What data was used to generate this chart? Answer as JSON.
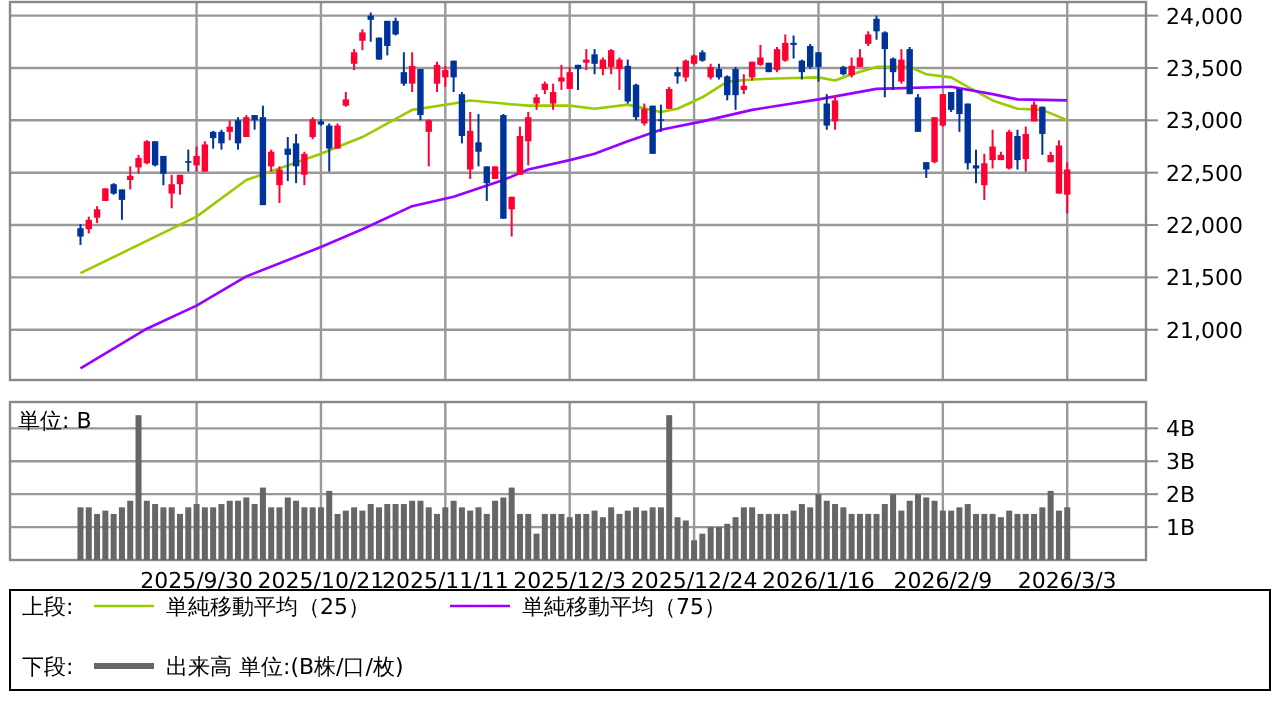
{
  "chart_data": [
    {
      "type": "candlestick",
      "categories": [
        null,
        null,
        null,
        null,
        null,
        null,
        null,
        null,
        null,
        null,
        null,
        null,
        null,
        null,
        "2025/9/30",
        null,
        null,
        null,
        null,
        null,
        null,
        null,
        null,
        null,
        null,
        null,
        null,
        null,
        null,
        "2025/10/21",
        null,
        null,
        null,
        null,
        null,
        null,
        null,
        null,
        null,
        null,
        null,
        null,
        null,
        null,
        "2025/11/11",
        null,
        null,
        null,
        null,
        null,
        null,
        null,
        null,
        null,
        null,
        null,
        null,
        null,
        null,
        "2025/12/3",
        null,
        null,
        null,
        null,
        null,
        null,
        null,
        null,
        null,
        null,
        null,
        null,
        null,
        null,
        "2025/12/24",
        null,
        null,
        null,
        null,
        null,
        null,
        null,
        null,
        null,
        null,
        null,
        null,
        null,
        null,
        "2026/1/16",
        null,
        null,
        null,
        null,
        null,
        null,
        null,
        null,
        null,
        null,
        null,
        null,
        null,
        null,
        "2026/2/9",
        null,
        null,
        null,
        null,
        null,
        null,
        null,
        null,
        null,
        null,
        null,
        null,
        null,
        null,
        "2026/3/3"
      ],
      "ohlc": [
        [
          21970,
          22010,
          21810,
          21890
        ],
        [
          21960,
          22080,
          21920,
          22050
        ],
        [
          22070,
          22180,
          22020,
          22150
        ],
        [
          22230,
          22350,
          22230,
          22350
        ],
        [
          22390,
          22400,
          22290,
          22300
        ],
        [
          22340,
          22340,
          22050,
          22240
        ],
        [
          22430,
          22560,
          22340,
          22470
        ],
        [
          22550,
          22670,
          22490,
          22640
        ],
        [
          22590,
          22810,
          22580,
          22800
        ],
        [
          22800,
          22800,
          22560,
          22570
        ],
        [
          22660,
          22660,
          22380,
          22490
        ],
        [
          22300,
          22480,
          22160,
          22390
        ],
        [
          22390,
          22480,
          22290,
          22480
        ],
        [
          22610,
          22720,
          22510,
          22600
        ],
        [
          22570,
          22750,
          22510,
          22660
        ],
        [
          22510,
          22800,
          22510,
          22770
        ],
        [
          22890,
          22900,
          22730,
          22830
        ],
        [
          22890,
          22910,
          22720,
          22780
        ],
        [
          22890,
          23000,
          22810,
          22940
        ],
        [
          23000,
          23030,
          22720,
          22780
        ],
        [
          22840,
          23050,
          22840,
          23030
        ],
        [
          23050,
          23050,
          22910,
          23000
        ],
        [
          23030,
          23140,
          22190,
          22190
        ],
        [
          22560,
          22720,
          22510,
          22700
        ],
        [
          22380,
          22560,
          22210,
          22530
        ],
        [
          22730,
          22840,
          22420,
          22670
        ],
        [
          22780,
          22870,
          22400,
          22560
        ],
        [
          22480,
          22700,
          22380,
          22680
        ],
        [
          22840,
          23030,
          22820,
          23010
        ],
        [
          22990,
          23010,
          22950,
          22960
        ],
        [
          22950,
          22970,
          22510,
          22730
        ],
        [
          22730,
          22970,
          22730,
          22950
        ],
        [
          23140,
          23270,
          23130,
          23200
        ],
        [
          23540,
          23680,
          23480,
          23650
        ],
        [
          23760,
          23870,
          23670,
          23840
        ],
        [
          24000,
          24030,
          23750,
          23960
        ],
        [
          23790,
          23790,
          23580,
          23580
        ],
        [
          23950,
          23950,
          23620,
          23710
        ],
        [
          23950,
          23980,
          23810,
          23820
        ],
        [
          23460,
          23650,
          23330,
          23350
        ],
        [
          23350,
          23650,
          23270,
          23520
        ],
        [
          23490,
          23490,
          23000,
          23050
        ],
        [
          22890,
          23010,
          22560,
          23000
        ],
        [
          23350,
          23560,
          23270,
          23530
        ],
        [
          23410,
          23520,
          23320,
          23480
        ],
        [
          23570,
          23570,
          23270,
          23410
        ],
        [
          23250,
          23270,
          22780,
          22850
        ],
        [
          22530,
          23080,
          22440,
          22900
        ],
        [
          22790,
          23060,
          22560,
          22700
        ],
        [
          22560,
          22560,
          22230,
          22400
        ],
        [
          22440,
          22560,
          22440,
          22560
        ],
        [
          23050,
          23060,
          22060,
          22060
        ],
        [
          22150,
          22270,
          21890,
          22270
        ],
        [
          22480,
          22940,
          22480,
          22850
        ],
        [
          22800,
          23080,
          22570,
          23030
        ],
        [
          23160,
          23250,
          23100,
          23220
        ],
        [
          23290,
          23370,
          23250,
          23350
        ],
        [
          23160,
          23350,
          23100,
          23270
        ],
        [
          23370,
          23530,
          23290,
          23410
        ],
        [
          23300,
          23510,
          23300,
          23460
        ],
        [
          23530,
          23530,
          23290,
          23490
        ],
        [
          23550,
          23680,
          23480,
          23580
        ],
        [
          23630,
          23680,
          23440,
          23540
        ],
        [
          23490,
          23600,
          23430,
          23580
        ],
        [
          23510,
          23680,
          23440,
          23670
        ],
        [
          23490,
          23600,
          23290,
          23580
        ],
        [
          23520,
          23580,
          23160,
          23180
        ],
        [
          23340,
          23350,
          23000,
          23030
        ],
        [
          22970,
          23160,
          22950,
          23110
        ],
        [
          23140,
          23140,
          22680,
          22680
        ],
        [
          23010,
          23150,
          22890,
          23000
        ],
        [
          23110,
          23320,
          23110,
          23300
        ],
        [
          23460,
          23510,
          23350,
          23420
        ],
        [
          23410,
          23580,
          23370,
          23570
        ],
        [
          23540,
          23630,
          23530,
          23620
        ],
        [
          23650,
          23670,
          23560,
          23570
        ],
        [
          23410,
          23540,
          23390,
          23510
        ],
        [
          23490,
          23540,
          23390,
          23410
        ],
        [
          23420,
          23430,
          23190,
          23240
        ],
        [
          23490,
          23510,
          23100,
          23240
        ],
        [
          23290,
          23440,
          23250,
          23330
        ],
        [
          23410,
          23560,
          23380,
          23560
        ],
        [
          23530,
          23720,
          23520,
          23600
        ],
        [
          23550,
          23550,
          23460,
          23460
        ],
        [
          23480,
          23700,
          23460,
          23680
        ],
        [
          23570,
          23820,
          23560,
          23740
        ],
        [
          23740,
          23810,
          23590,
          23720
        ],
        [
          23570,
          23580,
          23390,
          23460
        ],
        [
          23710,
          23730,
          23490,
          23510
        ],
        [
          23650,
          23650,
          23370,
          23510
        ],
        [
          23160,
          23250,
          22910,
          22950
        ],
        [
          22990,
          23240,
          22910,
          23190
        ],
        [
          23510,
          23520,
          23430,
          23440
        ],
        [
          23430,
          23600,
          23410,
          23520
        ],
        [
          23510,
          23680,
          23510,
          23600
        ],
        [
          23730,
          23850,
          23710,
          23820
        ],
        [
          23970,
          24000,
          23770,
          23850
        ],
        [
          23840,
          23850,
          23220,
          23680
        ],
        [
          23590,
          23600,
          23290,
          23460
        ],
        [
          23370,
          23680,
          23350,
          23580
        ],
        [
          23680,
          23700,
          23250,
          23250
        ],
        [
          23220,
          23250,
          22890,
          22890
        ],
        [
          22600,
          22600,
          22450,
          22530
        ],
        [
          22600,
          23030,
          22590,
          23030
        ],
        [
          22950,
          23250,
          22940,
          23250
        ],
        [
          23270,
          23270,
          23080,
          23100
        ],
        [
          23300,
          23300,
          22890,
          23060
        ],
        [
          23160,
          23160,
          22530,
          22590
        ],
        [
          22570,
          22720,
          22400,
          22540
        ],
        [
          22380,
          22680,
          22240,
          22590
        ],
        [
          22620,
          22910,
          22540,
          22750
        ],
        [
          22620,
          22700,
          22620,
          22670
        ],
        [
          22540,
          22910,
          22530,
          22890
        ],
        [
          22850,
          22910,
          22530,
          22620
        ],
        [
          22630,
          22940,
          22510,
          22870
        ],
        [
          22990,
          23180,
          22990,
          23150
        ],
        [
          23130,
          23130,
          22670,
          22870
        ],
        [
          22600,
          22700,
          22600,
          22670
        ],
        [
          22300,
          22810,
          22300,
          22760
        ],
        [
          22290,
          22600,
          22110,
          22530
        ]
      ],
      "colors": [
        "#003399",
        "#ff0033",
        "#ff0033",
        "#ff0033",
        "#003399",
        "#003399",
        "#ff0033",
        "#ff0033",
        "#ff0033",
        "#003399",
        "#003399",
        "#ff0033",
        "#ff0033",
        "#003399",
        "#ff0033",
        "#ff0033",
        "#003399",
        "#003399",
        "#ff0033",
        "#003399",
        "#ff0033",
        "#003399",
        "#003399",
        "#ff0033",
        "#ff0033",
        "#003399",
        "#003399",
        "#ff0033",
        "#ff0033",
        "#003399",
        "#003399",
        "#ff0033",
        "#ff0033",
        "#ff0033",
        "#ff0033",
        "#003399",
        "#003399",
        "#003399",
        "#003399",
        "#003399",
        "#ff0033",
        "#003399",
        "#ff0033",
        "#ff0033",
        "#ff0033",
        "#003399",
        "#003399",
        "#ff0033",
        "#003399",
        "#003399",
        "#ff0033",
        "#003399",
        "#ff0033",
        "#ff0033",
        "#ff0033",
        "#ff0033",
        "#ff0033",
        "#ff0033",
        "#ff0033",
        "#ff0033",
        "#003399",
        "#ff0033",
        "#003399",
        "#ff0033",
        "#ff0033",
        "#ff0033",
        "#003399",
        "#003399",
        "#ff0033",
        "#003399",
        "#003399",
        "#ff0033",
        "#003399",
        "#ff0033",
        "#ff0033",
        "#003399",
        "#ff0033",
        "#003399",
        "#003399",
        "#003399",
        "#ff0033",
        "#ff0033",
        "#ff0033",
        "#003399",
        "#ff0033",
        "#ff0033",
        "#003399",
        "#003399",
        "#003399",
        "#003399",
        "#003399",
        "#ff0033",
        "#003399",
        "#ff0033",
        "#ff0033",
        "#ff0033",
        "#003399",
        "#003399",
        "#003399",
        "#ff0033",
        "#003399",
        "#003399",
        "#003399",
        "#ff0033",
        "#ff0033",
        "#003399",
        "#003399",
        "#003399",
        "#003399",
        "#ff0033",
        "#ff0033",
        "#ff0033",
        "#ff0033",
        "#003399",
        "#ff0033",
        "#ff0033",
        "#003399",
        "#ff0033",
        "#ff0033",
        "#ff0033"
      ],
      "series": [
        {
          "type": "line",
          "name": "単純移動平均（25）",
          "color": "#99cc00",
          "values": [
            21540,
            null,
            null,
            null,
            null,
            null,
            null,
            null,
            null,
            null,
            null,
            null,
            null,
            null,
            22080,
            null,
            null,
            null,
            null,
            null,
            22430,
            null,
            null,
            null,
            null,
            null,
            null,
            null,
            null,
            22680,
            null,
            null,
            null,
            null,
            22840,
            null,
            null,
            null,
            null,
            null,
            23100,
            null,
            null,
            null,
            null,
            23160,
            null,
            23190,
            null,
            null,
            null,
            23160,
            null,
            null,
            23140,
            null,
            null,
            null,
            null,
            23140,
            null,
            null,
            23110,
            null,
            null,
            null,
            23150,
            null,
            null,
            null,
            23080,
            null,
            23110,
            null,
            null,
            23220,
            null,
            null,
            23370,
            null,
            null,
            23390,
            null,
            null,
            23400,
            null,
            null,
            null,
            null,
            23410,
            null,
            23380,
            null,
            23440,
            null,
            null,
            23510,
            null,
            null,
            null,
            23510,
            null,
            23440,
            null,
            null,
            23410,
            null,
            23320,
            null,
            null,
            23190,
            null,
            null,
            23110,
            null,
            null,
            23100,
            null,
            null,
            23000
          ]
        },
        {
          "type": "line",
          "name": "単純移動平均（75）",
          "color": "#9900ff",
          "values": [
            20630,
            null,
            null,
            null,
            null,
            null,
            null,
            null,
            21010,
            null,
            null,
            null,
            null,
            null,
            21230,
            null,
            null,
            null,
            null,
            null,
            21510,
            null,
            null,
            null,
            null,
            null,
            null,
            null,
            null,
            21790,
            null,
            null,
            null,
            null,
            21960,
            null,
            null,
            null,
            null,
            null,
            22180,
            null,
            null,
            null,
            null,
            22270,
            null,
            null,
            null,
            null,
            null,
            22430,
            null,
            null,
            22530,
            null,
            null,
            null,
            null,
            22620,
            null,
            null,
            22680,
            null,
            null,
            null,
            22800,
            null,
            null,
            null,
            22910,
            null,
            null,
            null,
            null,
            22990,
            null,
            null,
            null,
            null,
            null,
            23100,
            null,
            null,
            null,
            null,
            null,
            null,
            null,
            23200,
            null,
            null,
            null,
            null,
            null,
            null,
            23300,
            null,
            null,
            null,
            null,
            null,
            null,
            null,
            null,
            23320,
            null,
            null,
            null,
            null,
            23250,
            null,
            null,
            23200,
            null,
            null,
            null,
            null,
            null,
            23190
          ]
        }
      ],
      "ylim": [
        20520,
        24130
      ],
      "yticks": [
        {
          "value": 21000,
          "label": "21,000"
        },
        {
          "value": 21500,
          "label": "21,500"
        },
        {
          "value": 22000,
          "label": "22,000"
        },
        {
          "value": 22500,
          "label": "22,500"
        },
        {
          "value": 23000,
          "label": "23,000"
        },
        {
          "value": 23500,
          "label": "23,500"
        },
        {
          "value": 24000,
          "label": "24,000"
        }
      ],
      "grid": true,
      "tick_labels": "y",
      "legend": "bottom",
      "legend_title": "上段:"
    },
    {
      "type": "bar",
      "categories": [
        null,
        null,
        null,
        null,
        null,
        null,
        null,
        null,
        null,
        null,
        null,
        null,
        null,
        null,
        "2025/9/30",
        null,
        null,
        null,
        null,
        null,
        null,
        null,
        null,
        null,
        null,
        null,
        null,
        null,
        null,
        "2025/10/21",
        null,
        null,
        null,
        null,
        null,
        null,
        null,
        null,
        null,
        null,
        null,
        null,
        null,
        null,
        "2025/11/11",
        null,
        null,
        null,
        null,
        null,
        null,
        null,
        null,
        null,
        null,
        null,
        null,
        null,
        null,
        "2025/12/3",
        null,
        null,
        null,
        null,
        null,
        null,
        null,
        null,
        null,
        null,
        null,
        null,
        null,
        null,
        "2025/12/24",
        null,
        null,
        null,
        null,
        null,
        null,
        null,
        null,
        null,
        null,
        null,
        null,
        null,
        null,
        "2026/1/16",
        null,
        null,
        null,
        null,
        null,
        null,
        null,
        null,
        null,
        null,
        null,
        null,
        null,
        null,
        "2026/2/9",
        null,
        null,
        null,
        null,
        null,
        null,
        null,
        null,
        null,
        null,
        null,
        null,
        null,
        null,
        "2026/3/3"
      ],
      "series": [
        {
          "name": "出来高 単位:(B株/口/枚)",
          "color": "#666666",
          "values": [
            1.6,
            1.6,
            1.4,
            1.5,
            1.4,
            1.6,
            1.8,
            4.4,
            1.8,
            1.7,
            1.6,
            1.6,
            1.4,
            1.6,
            1.7,
            1.6,
            1.6,
            1.7,
            1.8,
            1.8,
            1.9,
            1.7,
            2.2,
            1.6,
            1.6,
            1.9,
            1.8,
            1.6,
            1.6,
            1.6,
            2.1,
            1.4,
            1.5,
            1.6,
            1.5,
            1.7,
            1.6,
            1.7,
            1.7,
            1.7,
            1.8,
            1.8,
            1.6,
            1.4,
            1.6,
            1.8,
            1.6,
            1.5,
            1.6,
            1.4,
            1.8,
            1.9,
            2.2,
            1.4,
            1.4,
            0.8,
            1.4,
            1.4,
            1.4,
            1.3,
            1.4,
            1.4,
            1.5,
            1.3,
            1.6,
            1.4,
            1.5,
            1.6,
            1.5,
            1.6,
            1.6,
            4.4,
            1.3,
            1.2,
            0.6,
            0.8,
            1.0,
            1.0,
            1.1,
            1.3,
            1.6,
            1.6,
            1.4,
            1.4,
            1.4,
            1.4,
            1.5,
            1.7,
            1.6,
            2.0,
            1.8,
            1.7,
            1.6,
            1.4,
            1.4,
            1.4,
            1.4,
            1.7,
            2.0,
            1.5,
            1.8,
            2.0,
            1.9,
            1.8,
            1.5,
            1.5,
            1.6,
            1.7,
            1.4,
            1.4,
            1.4,
            1.3,
            1.5,
            1.4,
            1.4,
            1.4,
            1.6,
            2.1,
            1.5,
            1.6
          ]
        }
      ],
      "ylim": [
        0,
        4.8
      ],
      "yticks": [
        {
          "value": 1,
          "label": "1B"
        },
        {
          "value": 2,
          "label": "2B"
        },
        {
          "value": 3,
          "label": "3B"
        },
        {
          "value": 4,
          "label": "4B"
        }
      ],
      "annotations": [
        "単位: B"
      ],
      "grid": true,
      "legend": "bottom",
      "legend_title": "下段:"
    }
  ]
}
